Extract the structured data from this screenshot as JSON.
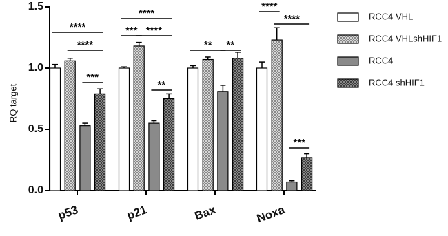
{
  "chart_data": {
    "type": "bar",
    "ylabel": "RQ target",
    "categories": [
      "p53",
      "p21",
      "Bax",
      "Noxa"
    ],
    "series": [
      {
        "name": "RCC4 VHL",
        "color": "#ffffff",
        "values": [
          1.0,
          1.0,
          1.0,
          1.0
        ],
        "errors": [
          0.03,
          0.01,
          0.02,
          0.05
        ]
      },
      {
        "name": "RCC4 VHLshHIF1",
        "color": "#d6d6d6",
        "values": [
          1.06,
          1.18,
          1.07,
          1.23
        ],
        "errors": [
          0.02,
          0.03,
          0.02,
          0.1
        ]
      },
      {
        "name": "RCC4",
        "color": "#8a8a8a",
        "values": [
          0.53,
          0.55,
          0.81,
          0.07
        ],
        "errors": [
          0.02,
          0.02,
          0.05,
          0.01
        ]
      },
      {
        "name": "RCC4 shHIF1",
        "color": "#3c3c3c",
        "values": [
          0.79,
          0.75,
          1.08,
          0.27
        ],
        "errors": [
          0.04,
          0.04,
          0.05,
          0.03
        ]
      }
    ],
    "ylim": [
      0,
      1.5
    ],
    "yticks": [
      {
        "value": 0,
        "label": "0.0"
      },
      {
        "value": 0.5,
        "label": "0.5"
      },
      {
        "value": 1,
        "label": "1.0"
      },
      {
        "value": 1.5,
        "label": "1.5"
      }
    ],
    "annotations": [
      "****",
      "****",
      "***",
      "****",
      "***",
      "****",
      "**",
      "**",
      "**",
      "****",
      "****",
      "***"
    ]
  }
}
